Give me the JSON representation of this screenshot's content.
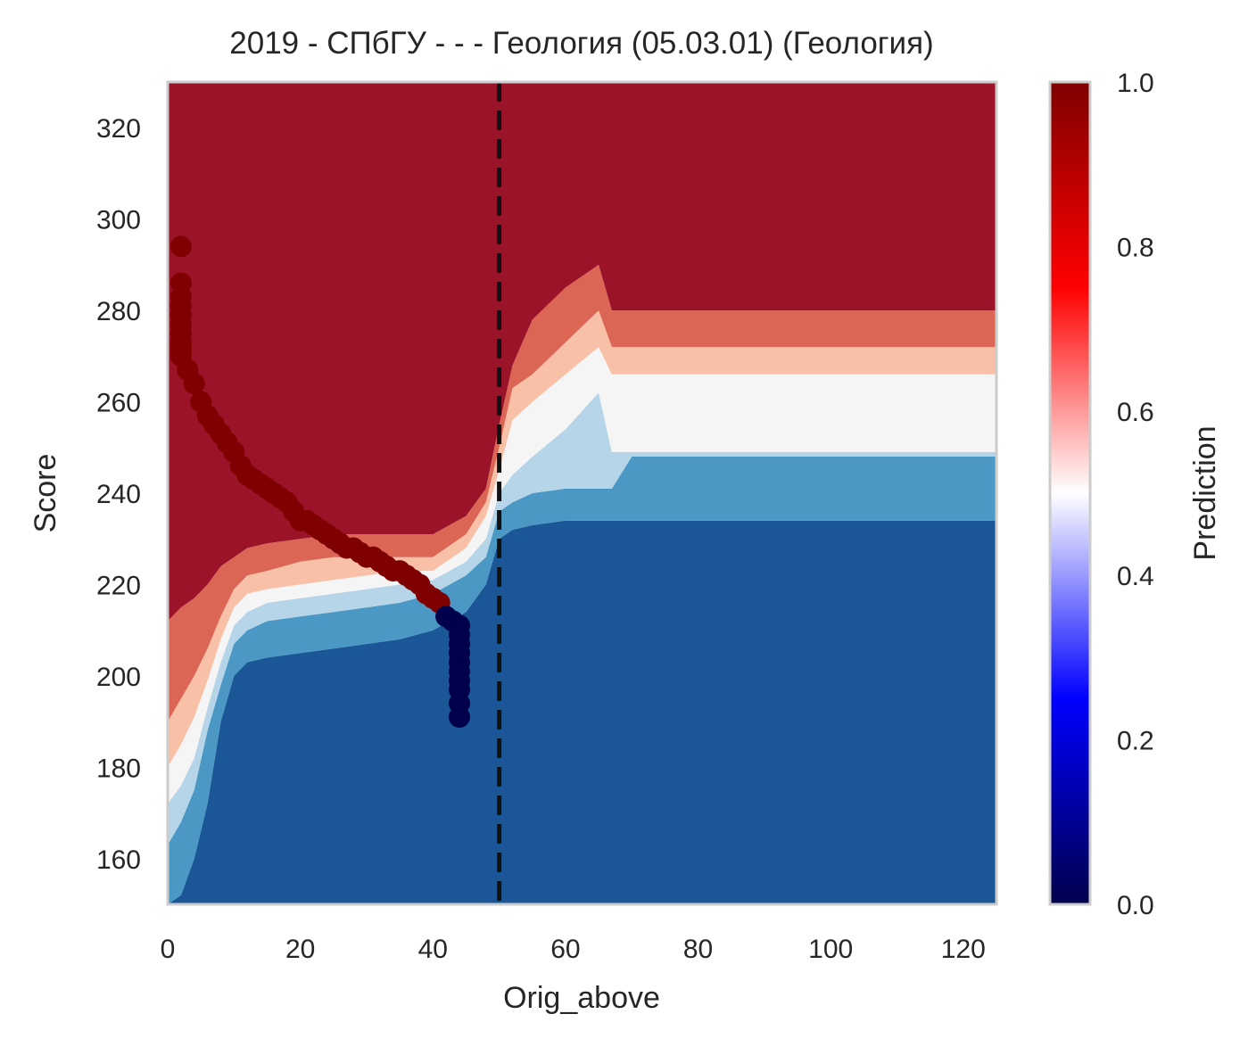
{
  "chart_data": {
    "type": "heatmap",
    "title": "2019 - СПбГУ - - - Геология (05.03.01) (Геология)",
    "xlabel": "Orig_above",
    "ylabel": "Score",
    "xlim": [
      0,
      125
    ],
    "ylim": [
      150,
      330
    ],
    "x_ticks": [
      0,
      20,
      40,
      60,
      80,
      100,
      120
    ],
    "y_ticks": [
      160,
      180,
      200,
      220,
      240,
      260,
      280,
      300,
      320
    ],
    "colorbar": {
      "label": "Prediction",
      "range": [
        0,
        1
      ],
      "ticks": [
        "0.0",
        "0.2",
        "0.4",
        "0.6",
        "0.8",
        "1.0"
      ],
      "colormap": "seismic"
    },
    "threshold_line_x": 50,
    "contour_levels": [
      {
        "range": [
          0.0,
          0.15
        ],
        "color": "#1b5797"
      },
      {
        "range": [
          0.15,
          0.3
        ],
        "color": "#4b98c5"
      },
      {
        "range": [
          0.3,
          0.45
        ],
        "color": "#b7d5e8"
      },
      {
        "range": [
          0.45,
          0.55
        ],
        "color": "#f5f5f5"
      },
      {
        "range": [
          0.55,
          0.7
        ],
        "color": "#f8c1a7"
      },
      {
        "range": [
          0.7,
          0.85
        ],
        "color": "#db6656"
      },
      {
        "range": [
          0.85,
          1.0
        ],
        "color": "#9b1328"
      }
    ],
    "contour_boundaries": {
      "x": [
        0,
        2,
        4,
        6,
        8,
        10,
        12,
        15,
        20,
        25,
        30,
        35,
        40,
        45,
        48,
        50,
        52,
        55,
        60,
        65,
        67,
        70,
        80,
        100,
        125
      ],
      "b1": [
        150,
        152,
        160,
        172,
        190,
        200,
        203,
        204,
        205,
        206,
        207,
        208,
        210,
        214,
        220,
        230,
        232,
        233,
        234,
        234,
        234,
        234,
        234,
        234,
        234
      ],
      "b2": [
        163,
        168,
        175,
        188,
        198,
        207,
        210,
        212,
        213,
        214,
        215,
        216,
        218,
        222,
        226,
        236,
        238,
        240,
        241,
        241,
        241,
        248,
        248,
        248,
        248
      ],
      "b3": [
        172,
        176,
        182,
        193,
        203,
        211,
        214,
        216,
        217,
        218,
        219,
        220,
        221,
        225,
        230,
        240,
        244,
        248,
        254,
        262,
        249,
        249,
        249,
        249,
        249
      ],
      "b4": [
        180,
        185,
        191,
        199,
        208,
        215,
        218,
        219,
        220,
        221,
        222,
        223,
        223,
        228,
        235,
        245,
        256,
        260,
        266,
        272,
        266,
        266,
        266,
        266,
        266
      ],
      "b5": [
        190,
        195,
        200,
        206,
        213,
        219,
        222,
        223,
        225,
        226,
        226,
        226,
        226,
        231,
        238,
        250,
        263,
        266,
        273,
        280,
        272,
        272,
        272,
        272,
        272
      ],
      "b6": [
        212,
        215,
        217,
        220,
        224,
        226,
        228,
        229,
        230,
        231,
        231,
        231,
        231,
        235,
        241,
        255,
        268,
        278,
        285,
        290,
        280,
        280,
        280,
        280,
        280
      ]
    },
    "scatter_points": {
      "x": [
        2,
        2,
        2,
        2,
        2,
        2,
        2,
        2,
        2,
        2,
        2,
        3,
        4,
        5,
        6,
        7,
        8,
        9,
        10,
        11,
        12,
        13,
        14,
        15,
        16,
        17,
        18,
        19,
        20,
        21,
        22,
        23,
        24,
        25,
        26,
        27,
        28,
        29,
        30,
        31,
        32,
        33,
        34,
        35,
        36,
        37,
        38,
        39,
        40,
        41,
        42,
        43,
        44,
        44,
        44,
        44,
        44,
        44,
        44,
        44,
        44,
        44
      ],
      "y": [
        294,
        286,
        283,
        281,
        279,
        277,
        275,
        273,
        272,
        271,
        270,
        267,
        264,
        260,
        257,
        255,
        253,
        251,
        249,
        246,
        244,
        243,
        242,
        241,
        240,
        239,
        238,
        236,
        234,
        234,
        233,
        232,
        231,
        230,
        229,
        228,
        228,
        227,
        226,
        226,
        225,
        224,
        223,
        223,
        222,
        221,
        220,
        218,
        217,
        216,
        213,
        212,
        211,
        209,
        207,
        205,
        203,
        201,
        199,
        197,
        194,
        191
      ],
      "values": [
        1,
        1,
        1,
        1,
        1,
        1,
        1,
        1,
        1,
        1,
        1,
        1,
        1,
        1,
        1,
        1,
        1,
        1,
        1,
        1,
        1,
        1,
        1,
        1,
        1,
        1,
        1,
        1,
        1,
        1,
        1,
        1,
        1,
        1,
        1,
        1,
        1,
        1,
        1,
        1,
        1,
        1,
        1,
        1,
        1,
        1,
        1,
        1,
        1,
        1,
        0,
        0,
        0,
        0,
        0,
        0,
        0,
        0,
        0,
        0,
        0,
        0
      ],
      "colors": {
        "1": "#7f0000",
        "0": "#00004c"
      }
    },
    "grid": false,
    "legend": "none"
  }
}
